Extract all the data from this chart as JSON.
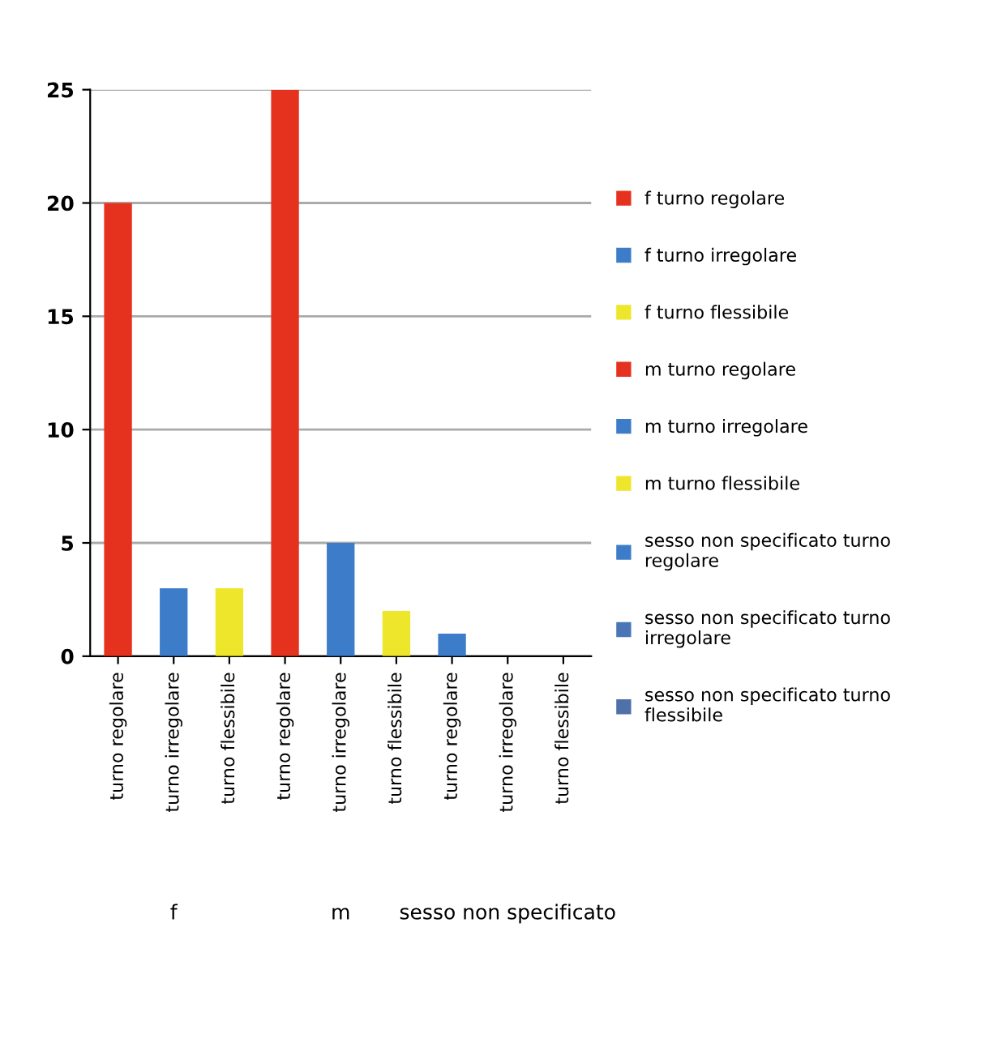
{
  "chart_data": {
    "type": "bar",
    "categories": [
      "turno regolare",
      "turno irregolare",
      "turno flessibile",
      "turno regolare",
      "turno irregolare",
      "turno flessibile",
      "turno regolare",
      "turno irregolare",
      "turno flessibile"
    ],
    "series": [
      {
        "name": "f turno regolare",
        "color": "#e5321f",
        "values": [
          20,
          null,
          null,
          null,
          null,
          null,
          null,
          null,
          null
        ]
      },
      {
        "name": "f turno irregolare",
        "color": "#3d7cc9",
        "values": [
          null,
          3,
          null,
          null,
          null,
          null,
          null,
          null,
          null
        ]
      },
      {
        "name": "f turno flessibile",
        "color": "#ede62a",
        "values": [
          null,
          null,
          3,
          null,
          null,
          null,
          null,
          null,
          null
        ]
      },
      {
        "name": "m turno regolare",
        "color": "#e5321f",
        "values": [
          null,
          null,
          null,
          25,
          null,
          null,
          null,
          null,
          null
        ]
      },
      {
        "name": "m turno irregolare",
        "color": "#3d7cc9",
        "values": [
          null,
          null,
          null,
          null,
          5,
          null,
          null,
          null,
          null
        ]
      },
      {
        "name": "m turno flessibile",
        "color": "#ede62a",
        "values": [
          null,
          null,
          null,
          null,
          null,
          2,
          null,
          null,
          null
        ]
      },
      {
        "name": "sesso non specificato turno regolare",
        "color": "#3d7cc9",
        "values": [
          null,
          null,
          null,
          null,
          null,
          null,
          1,
          null,
          null
        ]
      },
      {
        "name": "sesso non specificato turno irregolare",
        "color": "#4a76b8",
        "values": [
          null,
          null,
          null,
          null,
          null,
          null,
          null,
          0,
          null
        ]
      },
      {
        "name": "sesso non specificato turno flessibile",
        "color": "#5070a8",
        "values": [
          null,
          null,
          null,
          null,
          null,
          null,
          null,
          null,
          0
        ]
      }
    ],
    "annotations": [
      "f",
      "m",
      "sesso non specificato"
    ],
    "ylim": [
      0,
      25
    ],
    "yticks": [
      0,
      5,
      10,
      15,
      20,
      25
    ],
    "grid": "y",
    "legend": "right"
  }
}
